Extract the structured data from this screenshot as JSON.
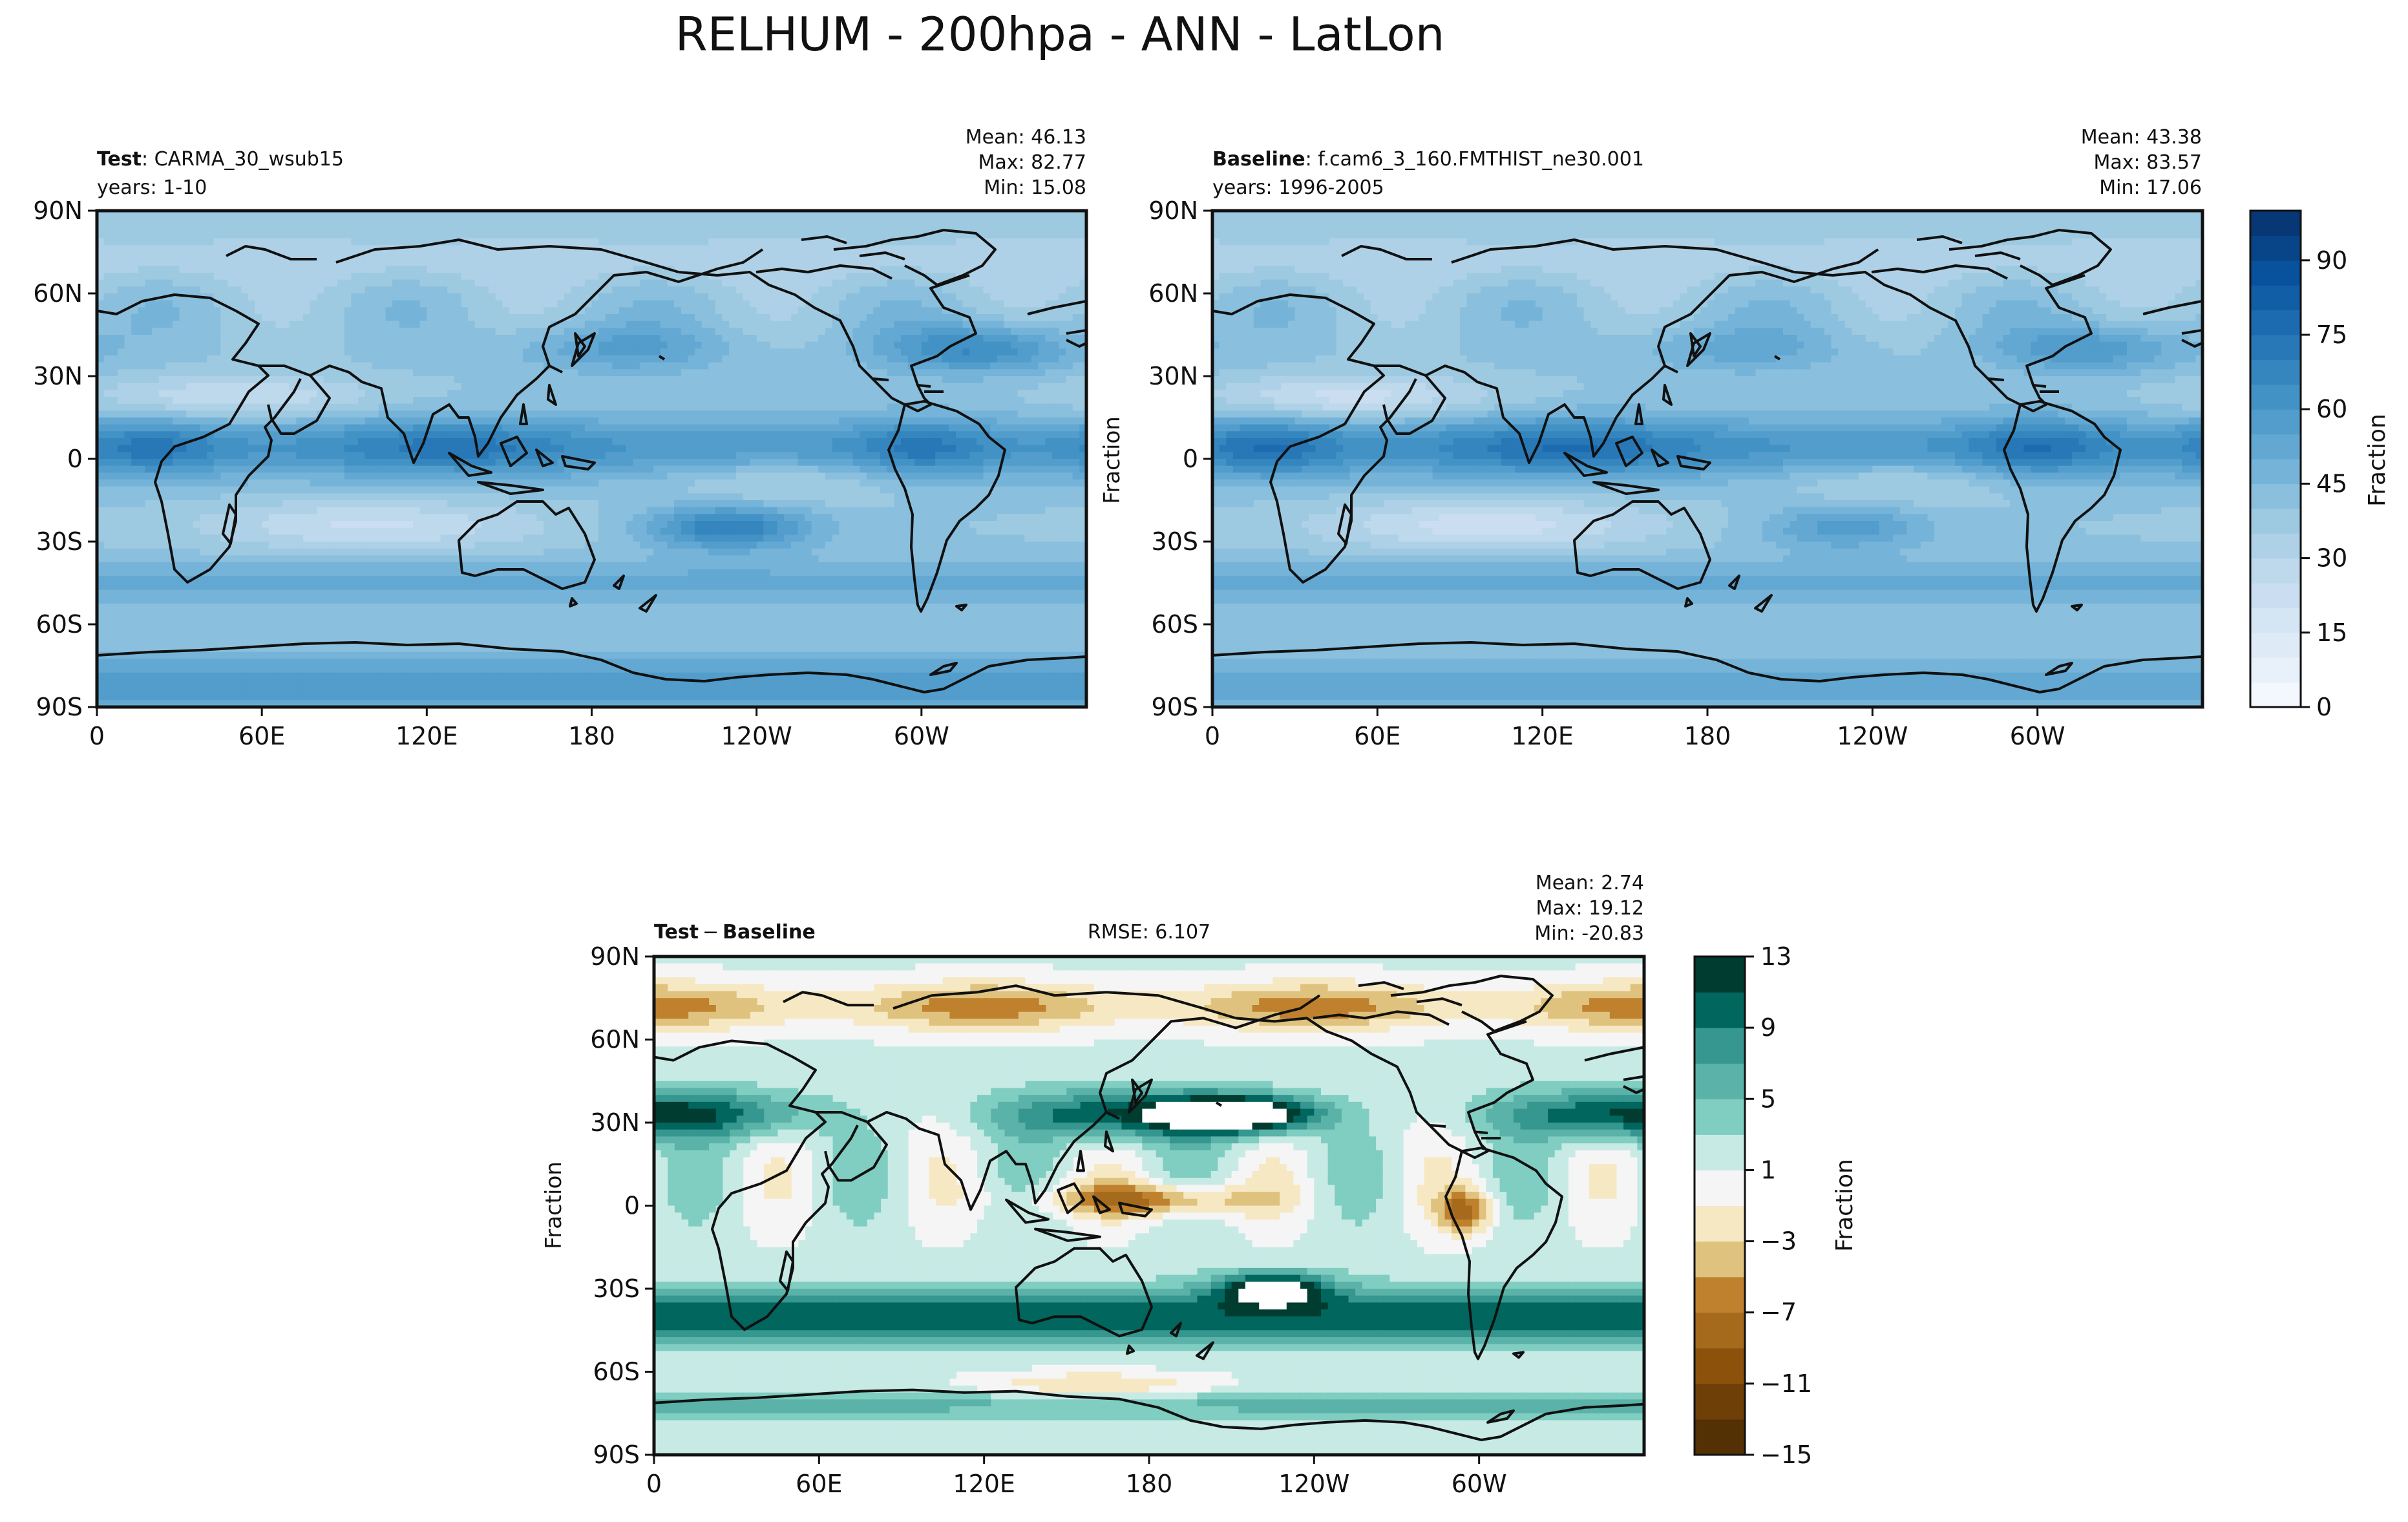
{
  "figure": {
    "title": "RELHUM - 200hpa - ANN - LatLon"
  },
  "colors": {
    "frame": "#111111",
    "land": "#111111",
    "seq_ramp": [
      "#f7fbff",
      "#deebf7",
      "#c6dbef",
      "#9ecae1",
      "#6baed6",
      "#4292c6",
      "#2171b5",
      "#08519c",
      "#08306b"
    ],
    "div_neg": [
      "#543005",
      "#8c510a",
      "#bf812d",
      "#dfc27d",
      "#f6e8c3"
    ],
    "div_zero": "#f5f5f5",
    "div_pos": [
      "#c7eae5",
      "#80cdc1",
      "#35978f",
      "#01665e",
      "#003c30"
    ]
  },
  "chart_data": [
    {
      "id": "test",
      "type": "heatmap",
      "projection": "PlateCarree",
      "label_bold": "Test",
      "label_rest": ": CARMA_30_wsub15",
      "years": "years: 1-10",
      "stats": {
        "mean": "Mean: 46.13",
        "max": "Max: 82.77",
        "min": "Min: 15.08"
      },
      "xticks": [
        "0",
        "60E",
        "120E",
        "180",
        "120W",
        "60W"
      ],
      "yticks": [
        "90N",
        "60N",
        "30N",
        "0",
        "30S",
        "60S",
        "90S"
      ],
      "ylabel": "",
      "value_range": [
        0,
        100
      ],
      "fields": {
        "mean": 46.13,
        "itcz_peak": 73,
        "subtropical_dry": 24,
        "south_pacific_band": 70,
        "north_atlantic_storm": 66,
        "antarctic": 60
      }
    },
    {
      "id": "baseline",
      "type": "heatmap",
      "projection": "PlateCarree",
      "label_bold": "Baseline",
      "label_rest": ": f.cam6_3_160.FMTHIST_ne30.001",
      "years": "years: 1996-2005",
      "stats": {
        "mean": "Mean: 43.38",
        "max": "Max: 83.57",
        "min": "Min: 17.06"
      },
      "xticks": [
        "0",
        "60E",
        "120E",
        "180",
        "120W",
        "60W"
      ],
      "yticks": [
        "90N",
        "60N",
        "30N",
        "0",
        "30S",
        "60S",
        "90S"
      ],
      "ylabel": "Fraction",
      "value_range": [
        0,
        100
      ],
      "fields": {
        "mean": 43.38,
        "itcz_peak": 76,
        "subtropical_dry": 22,
        "south_pacific_band": 58,
        "north_atlantic_storm": 60,
        "antarctic": 52
      }
    },
    {
      "id": "diff",
      "type": "heatmap",
      "projection": "PlateCarree",
      "label_bold": "Test",
      "label_minus": "−",
      "label_bold2": "Baseline",
      "rmse": "RMSE: 6.107",
      "stats": {
        "mean": "Mean:  2.74",
        "max": "Max: 19.12",
        "min": "Min: -20.83"
      },
      "xticks": [
        "0",
        "60E",
        "120E",
        "180",
        "120W",
        "60W"
      ],
      "yticks": [
        "90N",
        "60N",
        "30N",
        "0",
        "30S",
        "60S",
        "90S"
      ],
      "ylabel": "Fraction",
      "value_range": [
        -15,
        13
      ],
      "fields": {
        "pos_north_band_lat": 33,
        "pos_south_band_lat": -40,
        "neg_equatorial_pacific": -7,
        "neg_arctic": -8,
        "max": 19.12,
        "min": -20.83
      }
    }
  ],
  "colorbars": [
    {
      "id": "seq-colorbar",
      "label": "Fraction",
      "range": [
        0,
        100
      ],
      "levels": [
        0,
        5,
        10,
        15,
        20,
        25,
        30,
        35,
        40,
        45,
        50,
        55,
        60,
        65,
        70,
        75,
        80,
        85,
        90,
        95,
        100
      ],
      "ticks": [
        {
          "value": 0,
          "label": "0"
        },
        {
          "value": 15,
          "label": "15"
        },
        {
          "value": 30,
          "label": "30"
        },
        {
          "value": 45,
          "label": "45"
        },
        {
          "value": 60,
          "label": "60"
        },
        {
          "value": 75,
          "label": "75"
        },
        {
          "value": 90,
          "label": "90"
        }
      ]
    },
    {
      "id": "div-colorbar",
      "label": "Fraction",
      "range": [
        -15,
        13
      ],
      "levels": [
        -15,
        -13,
        -11,
        -9,
        -7,
        -5,
        -3,
        -1,
        1,
        3,
        5,
        7,
        9,
        11,
        13
      ],
      "ticks": [
        {
          "value": -15,
          "label": "−15"
        },
        {
          "value": -11,
          "label": "−11"
        },
        {
          "value": -7,
          "label": "−7"
        },
        {
          "value": -3,
          "label": "−3"
        },
        {
          "value": 1,
          "label": "1"
        },
        {
          "value": 5,
          "label": "5"
        },
        {
          "value": 9,
          "label": "9"
        },
        {
          "value": 13,
          "label": "13"
        }
      ]
    }
  ]
}
